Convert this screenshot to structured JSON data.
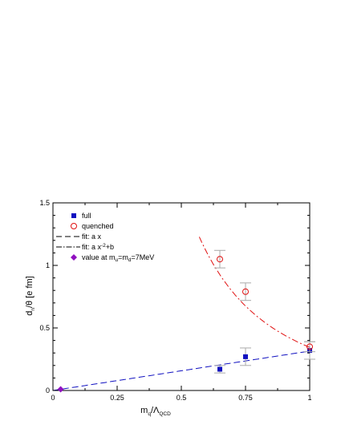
{
  "chart_data": {
    "type": "scatter",
    "xlabel": {
      "base": "m",
      "sub": "q",
      "mid": "/Λ",
      "sub2": "QCD"
    },
    "ylabel": {
      "base": "d",
      "sub": "n",
      "rest": "/θ  [e fm]"
    },
    "xlim": [
      0,
      1
    ],
    "ylim": [
      0,
      1.5
    ],
    "xticks": [
      {
        "value": 0,
        "label": "0"
      },
      {
        "value": 0.25,
        "label": "0.25"
      },
      {
        "value": 0.5,
        "label": "0.5"
      },
      {
        "value": 0.75,
        "label": "0.75"
      },
      {
        "value": 1,
        "label": "1"
      }
    ],
    "yticks": [
      {
        "value": 0,
        "label": "0"
      },
      {
        "value": 0.5,
        "label": "0.5"
      },
      {
        "value": 1,
        "label": "1"
      },
      {
        "value": 1.5,
        "label": "1.5"
      }
    ],
    "legend_position": "top-left",
    "series": [
      {
        "name": "full",
        "marker": "filled-square",
        "color": "#1010c0",
        "points": [
          {
            "x": 0.65,
            "y": 0.17,
            "err": 0.03
          },
          {
            "x": 0.75,
            "y": 0.27,
            "err": 0.07
          },
          {
            "x": 1.0,
            "y": 0.32,
            "err": 0.07
          }
        ]
      },
      {
        "name": "quenched",
        "marker": "open-circle",
        "color": "#e01010",
        "points": [
          {
            "x": 0.65,
            "y": 1.05,
            "err": 0.07
          },
          {
            "x": 0.75,
            "y": 0.79,
            "err": 0.07
          },
          {
            "x": 1.0,
            "y": 0.35,
            "err": 0.04
          }
        ]
      },
      {
        "name": "value at m_u=m_d=7MeV",
        "marker": "filled-diamond",
        "color": "#9010c0",
        "points": [
          {
            "x": 0.03,
            "y": 0.01
          }
        ]
      }
    ],
    "fits": [
      {
        "name": "fit: a x",
        "form": "a*x",
        "a": 0.315,
        "color": "#1010c0",
        "dash": "dashed",
        "xrange": [
          0,
          1
        ]
      },
      {
        "name": "fit: a x^-2+b",
        "form": "a*x^-2+b",
        "a": 0.425,
        "b": -0.08,
        "color": "#e01010",
        "dash": "dashdot",
        "xrange": [
          0.57,
          1
        ]
      }
    ]
  },
  "legend": {
    "full": "full",
    "quenched": "quenched",
    "fit_linear": "fit: a x",
    "fit_quad_main": "fit: a x",
    "fit_quad_sup": "-2",
    "fit_quad_tail": "+b",
    "value_main": "value at m",
    "value_sub1": "u",
    "value_mid": "=m",
    "value_sub2": "d",
    "value_tail": "=7MeV"
  }
}
